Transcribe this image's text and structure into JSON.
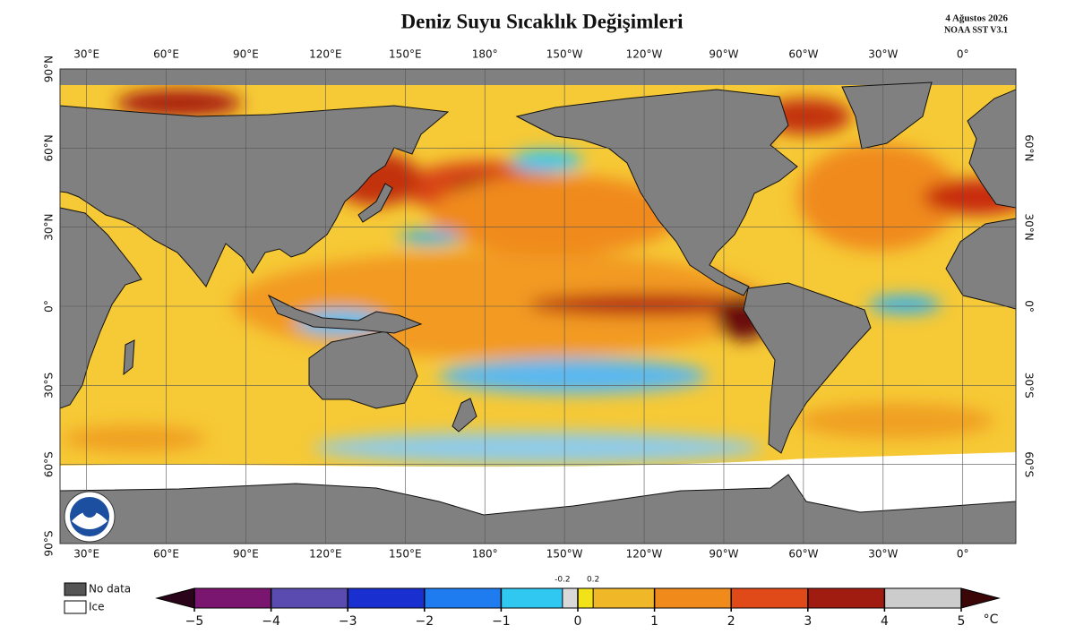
{
  "header": {
    "title": "Deniz Suyu Sıcaklık Değişimleri",
    "date": "4 Ağustos 2026",
    "source": "NOAA SST V3.1"
  },
  "map": {
    "lon_ticks": [
      {
        "value": 30,
        "label": "30°E"
      },
      {
        "value": 60,
        "label": "60°E"
      },
      {
        "value": 90,
        "label": "90°E"
      },
      {
        "value": 120,
        "label": "120°E"
      },
      {
        "value": 150,
        "label": "150°E"
      },
      {
        "value": 180,
        "label": "180°"
      },
      {
        "value": 210,
        "label": "150°W"
      },
      {
        "value": 240,
        "label": "120°W"
      },
      {
        "value": 270,
        "label": "90°W"
      },
      {
        "value": 300,
        "label": "60°W"
      },
      {
        "value": 330,
        "label": "30°W"
      },
      {
        "value": 0,
        "label": "0°"
      }
    ],
    "lat_ticks": [
      {
        "value": 90,
        "label": "90°N"
      },
      {
        "value": 60,
        "label": "60°N"
      },
      {
        "value": 30,
        "label": "30°N"
      },
      {
        "value": 0,
        "label": "0°"
      },
      {
        "value": -30,
        "label": "30°S"
      },
      {
        "value": -60,
        "label": "60°S"
      },
      {
        "value": -90,
        "label": "90°S"
      }
    ],
    "grid": true
  },
  "legend": {
    "no_data": "No data",
    "ice": "Ice"
  },
  "colorbar": {
    "unit": "°C",
    "ticks": [
      {
        "value": -5,
        "label": "−5"
      },
      {
        "value": -4,
        "label": "−4"
      },
      {
        "value": -3,
        "label": "−3"
      },
      {
        "value": -2,
        "label": "−2"
      },
      {
        "value": -1,
        "label": "−1"
      },
      0,
      1,
      2,
      3,
      4,
      5
    ],
    "minor_ticks": [
      -0.2,
      0.2
    ],
    "colors": [
      "#7a1670",
      "#5a4bb0",
      "#1a2fd0",
      "#1e7cf0",
      "#30c8f0",
      "#d9d9d9",
      "#f2e318",
      "#f0b828",
      "#f08a1a",
      "#e04a18",
      "#a01c10"
    ],
    "under_color": "#2a0418",
    "over_color": "#3a0608"
  }
}
